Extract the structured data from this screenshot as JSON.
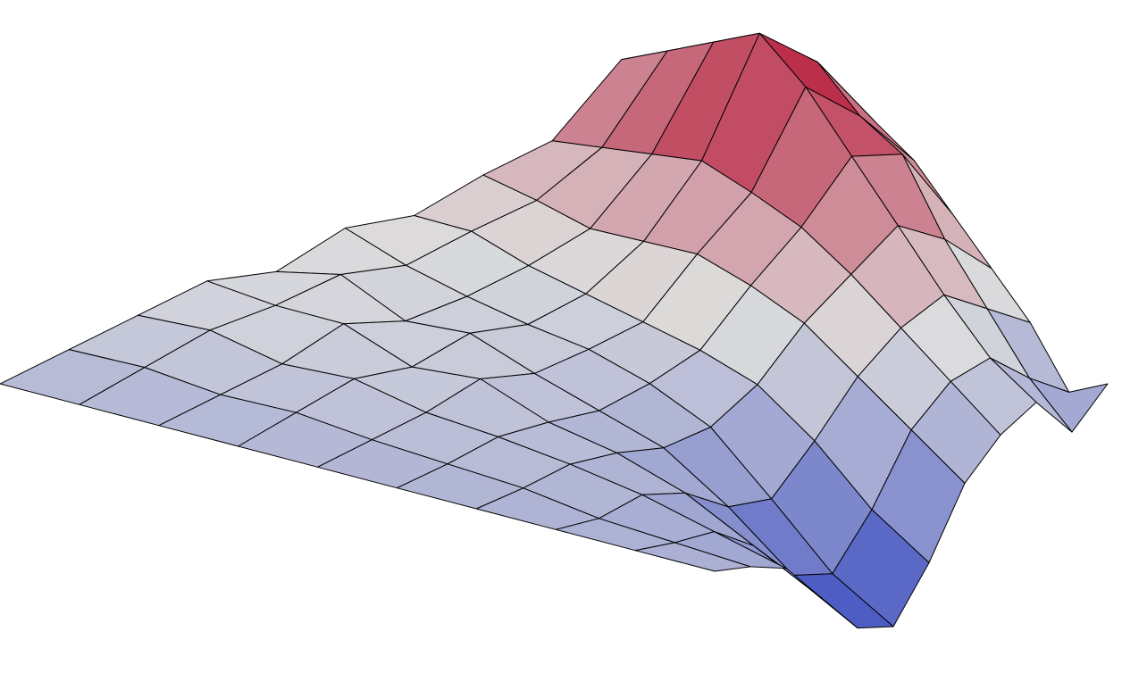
{
  "chart_data": {
    "type": "surface",
    "colormap": "coolwarm",
    "edge_color": "#000000",
    "z": [
      [
        0,
        0.5,
        1,
        1.5,
        1.2,
        2,
        1.8,
        2.5,
        3,
        5,
        4,
        4.5
      ],
      [
        0,
        0.6,
        1.2,
        1.4,
        1.8,
        1.5,
        2,
        2.4,
        3.5,
        6,
        5,
        4
      ],
      [
        0,
        0.4,
        0.8,
        1.5,
        1,
        1.2,
        1.6,
        2.2,
        4,
        7,
        6,
        4.2
      ],
      [
        0,
        0.5,
        1,
        0.8,
        1.3,
        1,
        1.4,
        2.5,
        4.5,
        8,
        6.5,
        4
      ],
      [
        0,
        0.3,
        0.6,
        1.1,
        0.7,
        0.9,
        1.2,
        2.8,
        4.2,
        7,
        5.5,
        3.5
      ],
      [
        0,
        0.2,
        0.5,
        0.4,
        0.2,
        0.5,
        1,
        2.5,
        3.8,
        5.5,
        5,
        2.5
      ],
      [
        0,
        0.1,
        0.3,
        0.1,
        -0.3,
        -0.2,
        0.6,
        2,
        3,
        4,
        3,
        1.5
      ],
      [
        0,
        -0.2,
        0,
        -0.5,
        -1.5,
        -1.8,
        -0.5,
        1,
        2,
        2.5,
        1.5,
        0.5
      ],
      [
        0,
        -0.3,
        -0.5,
        -1.5,
        -3,
        -3.5,
        -2,
        0,
        1,
        1.2,
        0,
        -1
      ],
      [
        0,
        -0.4,
        -1,
        -2.5,
        -4,
        -4.5,
        -3,
        -1,
        0,
        0.5,
        -1,
        0
      ]
    ]
  }
}
